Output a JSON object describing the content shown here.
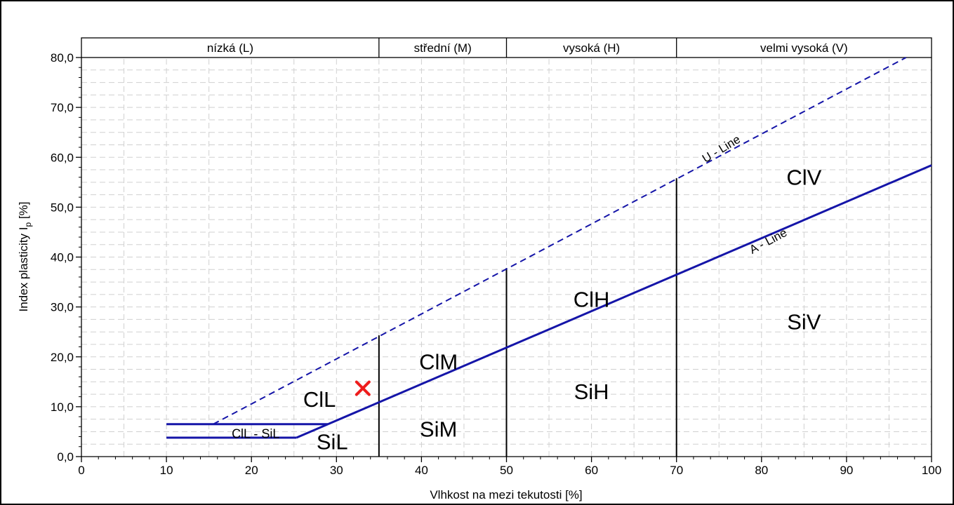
{
  "chart_data": {
    "type": "line",
    "title": "",
    "xlabel": "Vlhkost na mezi tekutosti [%]",
    "ylabel_main": "Index plasticity I",
    "ylabel_sub": "p",
    "ylabel_unit": " [%]",
    "xlim": [
      0,
      100
    ],
    "ylim": [
      0,
      80
    ],
    "x_ticks": [
      "0",
      "10",
      "20",
      "30",
      "40",
      "50",
      "60",
      "70",
      "80",
      "90",
      "100"
    ],
    "y_ticks": [
      "0,0",
      "10,0",
      "20,0",
      "30,0",
      "40,0",
      "50,0",
      "60,0",
      "70,0",
      "80,0"
    ],
    "grid": true,
    "plasticity_bands": [
      {
        "label": "nízká (L)",
        "from": 0,
        "to": 35
      },
      {
        "label": "střední (M)",
        "from": 35,
        "to": 50
      },
      {
        "label": "vysoká (H)",
        "from": 50,
        "to": 70
      },
      {
        "label": "velmi vysoká (V)",
        "from": 70,
        "to": 100
      }
    ],
    "series": [
      {
        "name": "A - Line",
        "style": "solid",
        "color": "#1515a8",
        "x": [
          29,
          100
        ],
        "y": [
          6.5,
          58.4
        ]
      },
      {
        "name": "U - Line",
        "style": "dashed",
        "color": "#1515a8",
        "x": [
          15.5,
          97
        ],
        "y": [
          6.5,
          80
        ]
      },
      {
        "style": "solid",
        "color": "#1515a8",
        "x": [
          10,
          29
        ],
        "y": [
          6.5,
          6.5
        ]
      },
      {
        "style": "solid",
        "color": "#1515a8",
        "x": [
          10,
          25.3
        ],
        "y": [
          3.8,
          3.8
        ]
      },
      {
        "style": "solid",
        "color": "#1515a8",
        "x": [
          25.3,
          29
        ],
        "y": [
          3.8,
          6.5
        ]
      }
    ],
    "boundaries": [
      {
        "x": 35,
        "y_top": 24.3
      },
      {
        "x": 50,
        "y_top": 37.8
      },
      {
        "x": 70,
        "y_top": 55.8
      }
    ],
    "line_labels": [
      {
        "text": "U - Line",
        "x": 75.5,
        "y": 61,
        "angle": -31
      },
      {
        "text": "A - Line",
        "x": 81,
        "y": 42.5,
        "angle": -28
      }
    ],
    "region_labels": [
      {
        "text": "ClL",
        "x": 28,
        "y": 10
      },
      {
        "text": "ClL - SiL",
        "x": 20.5,
        "y": 3.7
      },
      {
        "text": "SiL",
        "x": 29.5,
        "y": 1.5
      },
      {
        "text": "ClM",
        "x": 42,
        "y": 17.5
      },
      {
        "text": "SiM",
        "x": 42,
        "y": 4
      },
      {
        "text": "ClH",
        "x": 60,
        "y": 30
      },
      {
        "text": "SiH",
        "x": 60,
        "y": 11.5
      },
      {
        "text": "ClV",
        "x": 85,
        "y": 54.5
      },
      {
        "text": "SiV",
        "x": 85,
        "y": 25.5
      }
    ],
    "sample_points": [
      {
        "x": 33.1,
        "y": 13.7,
        "marker": "x",
        "color": "#ee1c1c"
      }
    ]
  }
}
